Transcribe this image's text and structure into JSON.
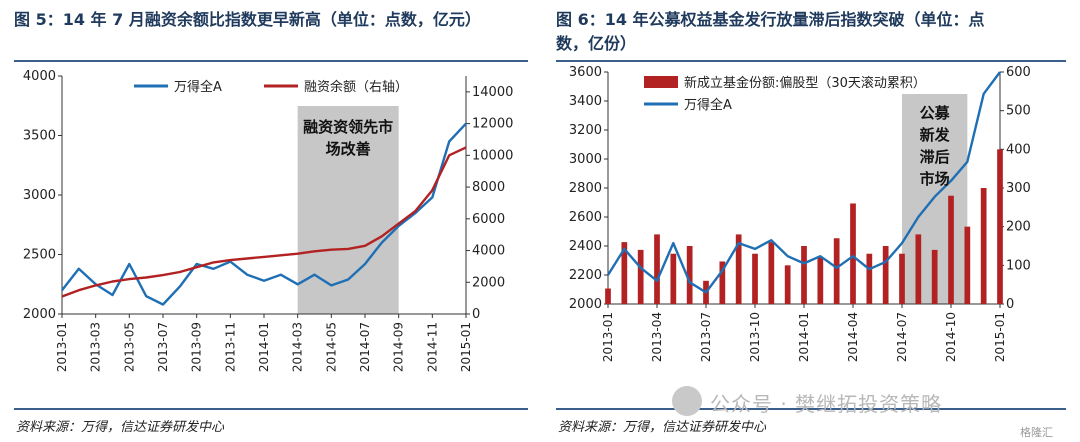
{
  "left": {
    "title": "图 5：14 年 7 月融资余额比指数更早新高（单位：点数，亿元）",
    "source": "资料来源：万得，信达证券研发中心"
  },
  "right": {
    "title_line1": "图 6：14 年公募权益基金发行放量滞后指数突破（单位：点",
    "title_line2": "数，亿份）",
    "source": "资料来源：万得，信达证券研发中心"
  },
  "watermark": "公众号 · 樊继拓投资策略",
  "corner_logo": "格隆汇",
  "colors": {
    "index_line": "#1f6fb5",
    "margin_line": "#b22222",
    "fund_bar": "#b22222",
    "shade": "#bdbdbd",
    "title": "#1f3a5c"
  },
  "chart_data": [
    {
      "type": "line",
      "dual_axis": true,
      "x_ticks": [
        "2013-01",
        "2013-03",
        "2013-05",
        "2013-07",
        "2013-09",
        "2013-11",
        "2014-01",
        "2014-03",
        "2014-05",
        "2014-07",
        "2014-09",
        "2014-11",
        "2015-01"
      ],
      "ylim_left": [
        2000,
        4000
      ],
      "yticks_left": [
        "2000",
        "2500",
        "3000",
        "3500",
        "4000"
      ],
      "ylim_right": [
        0,
        15000
      ],
      "yticks_right": [
        "0",
        "2000",
        "4000",
        "6000",
        "8000",
        "10000",
        "12000",
        "14000"
      ],
      "shaded_period": [
        "2014-03",
        "2014-09"
      ],
      "shaded_label_line1": "融资资领先市",
      "shaded_label_line2": "场改善",
      "series": [
        {
          "name": "万得全A",
          "axis": "left",
          "x": [
            "2013-01",
            "2013-02",
            "2013-03",
            "2013-04",
            "2013-05",
            "2013-06",
            "2013-07",
            "2013-08",
            "2013-09",
            "2013-10",
            "2013-11",
            "2013-12",
            "2014-01",
            "2014-02",
            "2014-03",
            "2014-04",
            "2014-05",
            "2014-06",
            "2014-07",
            "2014-08",
            "2014-09",
            "2014-10",
            "2014-11",
            "2014-12",
            "2015-01"
          ],
          "values": [
            2200,
            2380,
            2250,
            2160,
            2420,
            2150,
            2080,
            2230,
            2420,
            2380,
            2440,
            2330,
            2280,
            2330,
            2250,
            2330,
            2240,
            2290,
            2420,
            2600,
            2740,
            2850,
            2980,
            3450,
            3600
          ]
        },
        {
          "name": "融资余额（右轴）",
          "axis": "right",
          "x": [
            "2013-01",
            "2013-02",
            "2013-03",
            "2013-04",
            "2013-05",
            "2013-06",
            "2013-07",
            "2013-08",
            "2013-09",
            "2013-10",
            "2013-11",
            "2013-12",
            "2014-01",
            "2014-02",
            "2014-03",
            "2014-04",
            "2014-05",
            "2014-06",
            "2014-07",
            "2014-08",
            "2014-09",
            "2014-10",
            "2014-11",
            "2014-12",
            "2015-01"
          ],
          "values": [
            1100,
            1500,
            1800,
            2050,
            2200,
            2300,
            2450,
            2650,
            2950,
            3250,
            3400,
            3500,
            3600,
            3700,
            3800,
            3950,
            4050,
            4100,
            4300,
            4900,
            5700,
            6500,
            7800,
            10000,
            10500
          ]
        }
      ]
    },
    {
      "type": "bar+line",
      "dual_axis": true,
      "x_ticks": [
        "2013-01",
        "2013-04",
        "2013-07",
        "2013-10",
        "2014-01",
        "2014-04",
        "2014-07",
        "2014-10",
        "2015-01"
      ],
      "ylim_left": [
        2000,
        3600
      ],
      "yticks_left": [
        "2000",
        "2200",
        "2400",
        "2600",
        "2800",
        "3000",
        "3200",
        "3400",
        "3600"
      ],
      "ylim_right": [
        0,
        600
      ],
      "yticks_right": [
        "0",
        "100",
        "200",
        "300",
        "400",
        "500",
        "600"
      ],
      "shaded_period": [
        "2014-07",
        "2014-11"
      ],
      "shaded_label": [
        "公募",
        "新发",
        "滞后",
        "市场"
      ],
      "series": [
        {
          "name": "新成立基金份额:偏股型（30天滚动累积）",
          "axis": "right",
          "kind": "bar",
          "x": [
            "2013-01",
            "2013-02",
            "2013-03",
            "2013-04",
            "2013-05",
            "2013-06",
            "2013-07",
            "2013-08",
            "2013-09",
            "2013-10",
            "2013-11",
            "2013-12",
            "2014-01",
            "2014-02",
            "2014-03",
            "2014-04",
            "2014-05",
            "2014-06",
            "2014-07",
            "2014-08",
            "2014-09",
            "2014-10",
            "2014-11",
            "2014-12",
            "2015-01"
          ],
          "values": [
            40,
            160,
            140,
            180,
            130,
            150,
            60,
            110,
            180,
            130,
            160,
            100,
            150,
            120,
            170,
            260,
            130,
            150,
            130,
            180,
            140,
            280,
            200,
            300,
            400
          ]
        },
        {
          "name": "万得全A",
          "axis": "left",
          "kind": "line",
          "x": [
            "2013-01",
            "2013-02",
            "2013-03",
            "2013-04",
            "2013-05",
            "2013-06",
            "2013-07",
            "2013-08",
            "2013-09",
            "2013-10",
            "2013-11",
            "2013-12",
            "2014-01",
            "2014-02",
            "2014-03",
            "2014-04",
            "2014-05",
            "2014-06",
            "2014-07",
            "2014-08",
            "2014-09",
            "2014-10",
            "2014-11",
            "2014-12",
            "2015-01"
          ],
          "values": [
            2200,
            2380,
            2250,
            2160,
            2420,
            2150,
            2080,
            2230,
            2420,
            2380,
            2440,
            2330,
            2280,
            2330,
            2250,
            2330,
            2240,
            2290,
            2420,
            2600,
            2740,
            2850,
            2980,
            3450,
            3600
          ]
        }
      ]
    }
  ]
}
